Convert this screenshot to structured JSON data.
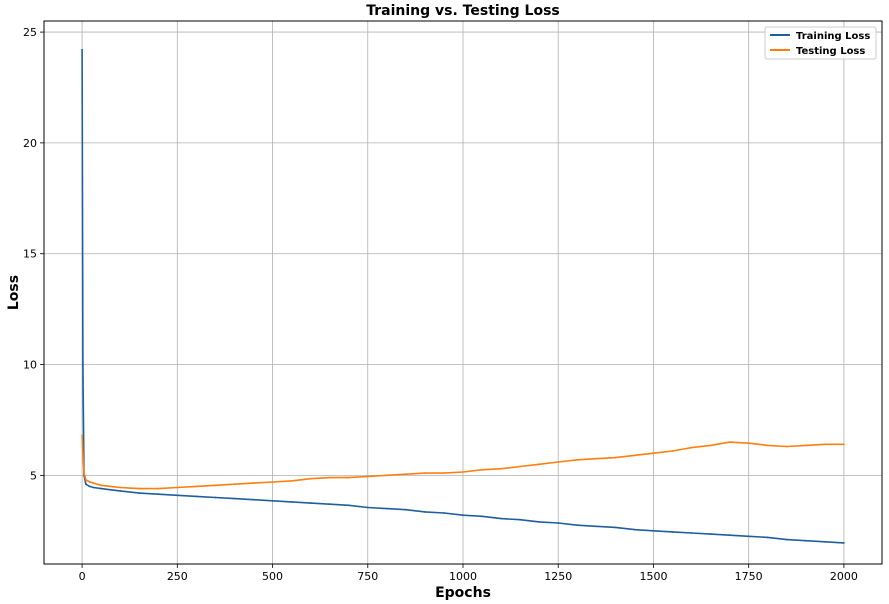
{
  "chart_data": {
    "type": "line",
    "title": "Training vs. Testing Loss",
    "xlabel": "Epochs",
    "ylabel": "Loss",
    "xlim": [
      -100,
      2100
    ],
    "ylim": [
      1.0,
      25.5
    ],
    "xticks": [
      0,
      250,
      500,
      750,
      1000,
      1250,
      1500,
      1750,
      2000
    ],
    "yticks": [
      5,
      10,
      15,
      20,
      25
    ],
    "grid": true,
    "legend_position": "top-right",
    "x": [
      0,
      2,
      5,
      10,
      20,
      30,
      50,
      75,
      100,
      150,
      200,
      250,
      300,
      350,
      400,
      450,
      500,
      550,
      600,
      650,
      700,
      750,
      800,
      850,
      900,
      950,
      1000,
      1050,
      1100,
      1150,
      1200,
      1250,
      1300,
      1350,
      1400,
      1450,
      1500,
      1550,
      1600,
      1650,
      1700,
      1750,
      1800,
      1850,
      1900,
      1950,
      2000
    ],
    "series": [
      {
        "name": "Training Loss",
        "color": "#1f5f9e",
        "values": [
          24.2,
          10.0,
          5.0,
          4.6,
          4.5,
          4.45,
          4.4,
          4.35,
          4.3,
          4.2,
          4.15,
          4.1,
          4.05,
          4.0,
          3.95,
          3.9,
          3.85,
          3.8,
          3.75,
          3.7,
          3.65,
          3.55,
          3.5,
          3.45,
          3.35,
          3.3,
          3.2,
          3.15,
          3.05,
          3.0,
          2.9,
          2.85,
          2.75,
          2.7,
          2.65,
          2.55,
          2.5,
          2.45,
          2.4,
          2.35,
          2.3,
          2.25,
          2.2,
          2.1,
          2.05,
          2.0,
          1.95
        ]
      },
      {
        "name": "Testing Loss",
        "color": "#ff7f0e",
        "values": [
          6.8,
          6.0,
          5.1,
          4.8,
          4.7,
          4.65,
          4.55,
          4.5,
          4.45,
          4.4,
          4.4,
          4.45,
          4.5,
          4.55,
          4.6,
          4.65,
          4.7,
          4.75,
          4.85,
          4.9,
          4.9,
          4.95,
          5.0,
          5.05,
          5.1,
          5.1,
          5.15,
          5.25,
          5.3,
          5.4,
          5.5,
          5.6,
          5.7,
          5.75,
          5.8,
          5.9,
          6.0,
          6.1,
          6.25,
          6.35,
          6.5,
          6.45,
          6.35,
          6.3,
          6.35,
          6.4,
          6.4
        ]
      }
    ]
  }
}
